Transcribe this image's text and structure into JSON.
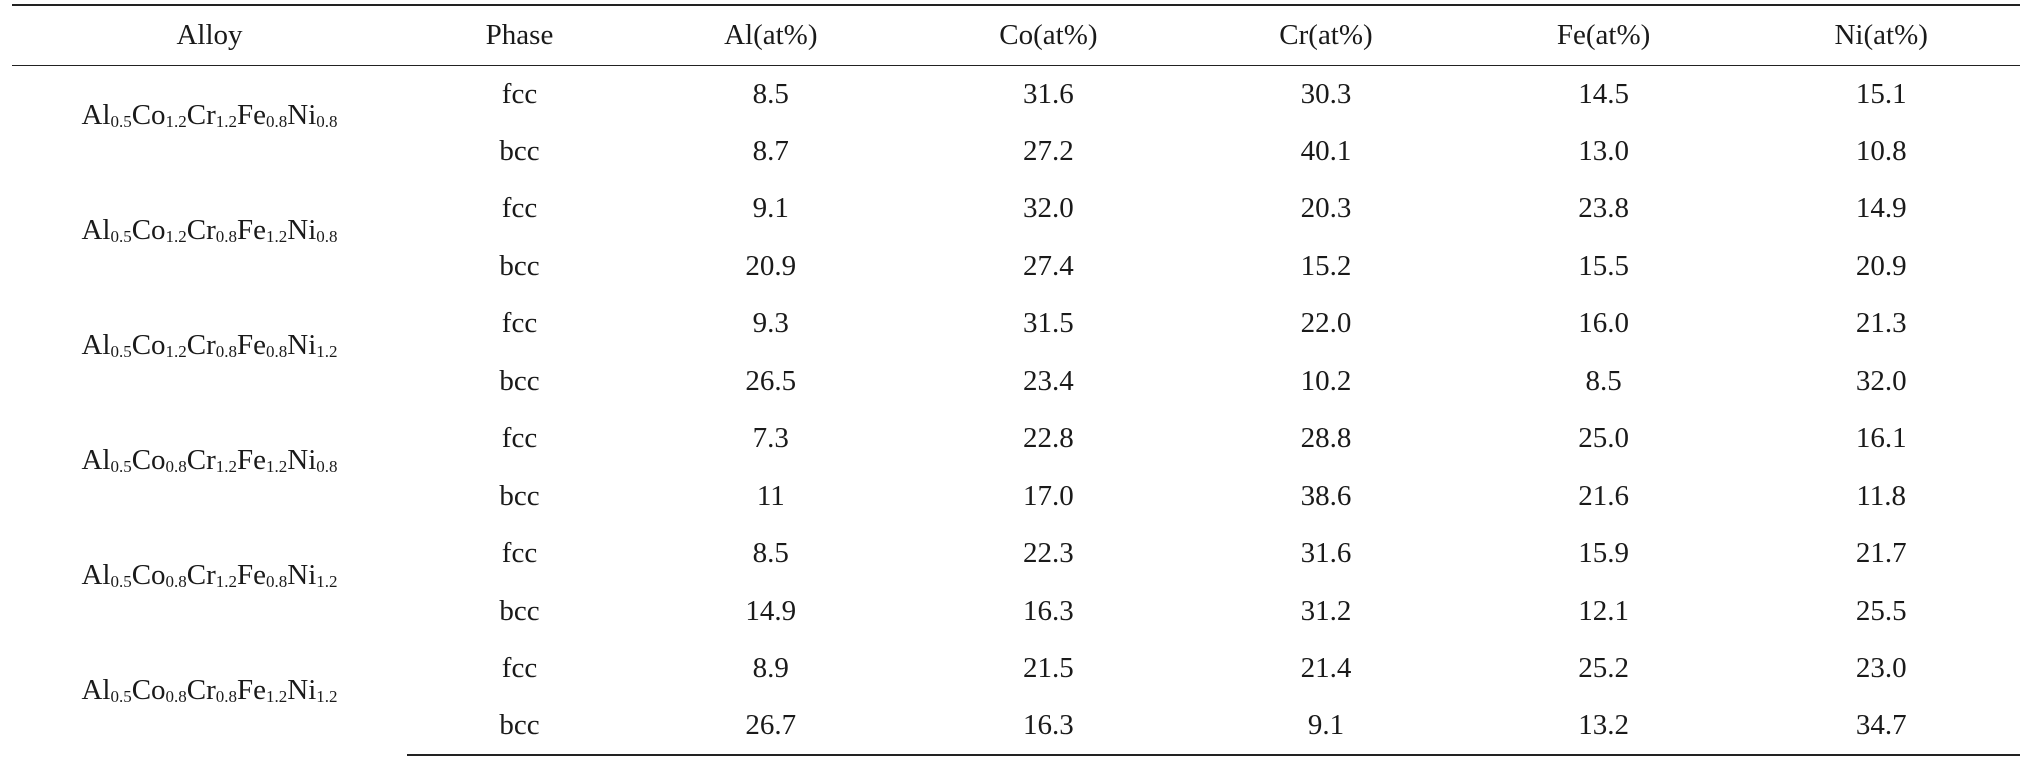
{
  "headers": [
    "Alloy",
    "Phase",
    "Al(at%)",
    "Co(at%)",
    "Cr(at%)",
    "Fe(at%)",
    "Ni(at%)"
  ],
  "alloys": [
    {
      "formula": [
        [
          "Al",
          "0.5"
        ],
        [
          "Co",
          "1.2"
        ],
        [
          "Cr",
          "1.2"
        ],
        [
          "Fe",
          "0.8"
        ],
        [
          "Ni",
          "0.8"
        ]
      ],
      "rows": [
        {
          "phase": "fcc",
          "values": [
            "8.5",
            "31.6",
            "30.3",
            "14.5",
            "15.1"
          ]
        },
        {
          "phase": "bcc",
          "values": [
            "8.7",
            "27.2",
            "40.1",
            "13.0",
            "10.8"
          ]
        }
      ]
    },
    {
      "formula": [
        [
          "Al",
          "0.5"
        ],
        [
          "Co",
          "1.2"
        ],
        [
          "Cr",
          "0.8"
        ],
        [
          "Fe",
          "1.2"
        ],
        [
          "Ni",
          "0.8"
        ]
      ],
      "rows": [
        {
          "phase": "fcc",
          "values": [
            "9.1",
            "32.0",
            "20.3",
            "23.8",
            "14.9"
          ]
        },
        {
          "phase": "bcc",
          "values": [
            "20.9",
            "27.4",
            "15.2",
            "15.5",
            "20.9"
          ]
        }
      ]
    },
    {
      "formula": [
        [
          "Al",
          "0.5"
        ],
        [
          "Co",
          "1.2"
        ],
        [
          "Cr",
          "0.8"
        ],
        [
          "Fe",
          "0.8"
        ],
        [
          "Ni",
          "1.2"
        ]
      ],
      "rows": [
        {
          "phase": "fcc",
          "values": [
            "9.3",
            "31.5",
            "22.0",
            "16.0",
            "21.3"
          ]
        },
        {
          "phase": "bcc",
          "values": [
            "26.5",
            "23.4",
            "10.2",
            "8.5",
            "32.0"
          ]
        }
      ]
    },
    {
      "formula": [
        [
          "Al",
          "0.5"
        ],
        [
          "Co",
          "0.8"
        ],
        [
          "Cr",
          "1.2"
        ],
        [
          "Fe",
          "1.2"
        ],
        [
          "Ni",
          "0.8"
        ]
      ],
      "rows": [
        {
          "phase": "fcc",
          "values": [
            "7.3",
            "22.8",
            "28.8",
            "25.0",
            "16.1"
          ]
        },
        {
          "phase": "bcc",
          "values": [
            "11",
            "17.0",
            "38.6",
            "21.6",
            "11.8"
          ]
        }
      ]
    },
    {
      "formula": [
        [
          "Al",
          "0.5"
        ],
        [
          "Co",
          "0.8"
        ],
        [
          "Cr",
          "1.2"
        ],
        [
          "Fe",
          "0.8"
        ],
        [
          "Ni",
          "1.2"
        ]
      ],
      "rows": [
        {
          "phase": "fcc",
          "values": [
            "8.5",
            "22.3",
            "31.6",
            "15.9",
            "21.7"
          ]
        },
        {
          "phase": "bcc",
          "values": [
            "14.9",
            "16.3",
            "31.2",
            "12.1",
            "25.5"
          ]
        }
      ]
    },
    {
      "formula": [
        [
          "Al",
          "0.5"
        ],
        [
          "Co",
          "0.8"
        ],
        [
          "Cr",
          "0.8"
        ],
        [
          "Fe",
          "1.2"
        ],
        [
          "Ni",
          "1.2"
        ]
      ],
      "rows": [
        {
          "phase": "fcc",
          "values": [
            "8.9",
            "21.5",
            "21.4",
            "25.2",
            "23.0"
          ]
        },
        {
          "phase": "bcc",
          "values": [
            "26.7",
            "16.3",
            "9.1",
            "13.2",
            "34.7"
          ]
        }
      ]
    }
  ]
}
